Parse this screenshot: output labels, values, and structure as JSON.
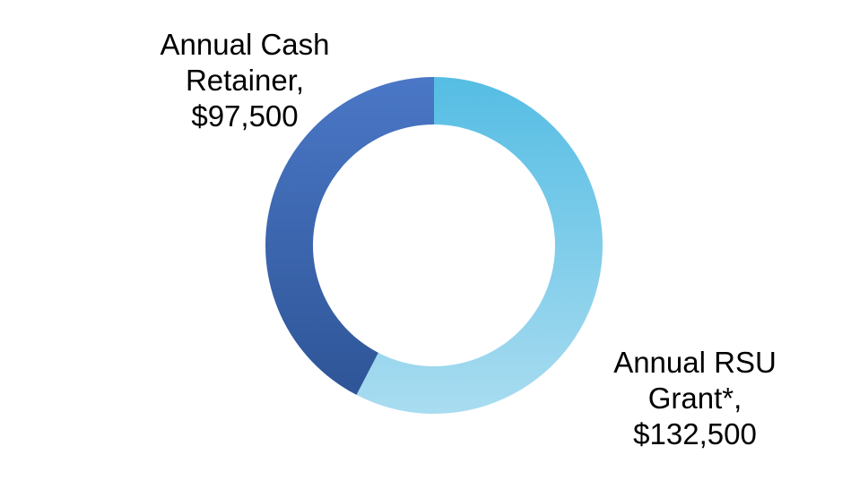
{
  "chart_data": {
    "type": "pie",
    "donut": true,
    "legend": "none",
    "slices": [
      {
        "category": "Annual Cash Retainer",
        "label_lines": [
          "Annual Cash",
          "Retainer,",
          "$97,500"
        ],
        "value": 97500,
        "color_start": "#4a77c6",
        "color_end": "#2e5597"
      },
      {
        "category": "Annual RSU Grant*",
        "label_lines": [
          "Annual RSU",
          "Grant*,",
          "$132,500"
        ],
        "value": 132500,
        "color_start": "#55bde4",
        "color_end": "#a9dcf0"
      }
    ]
  }
}
